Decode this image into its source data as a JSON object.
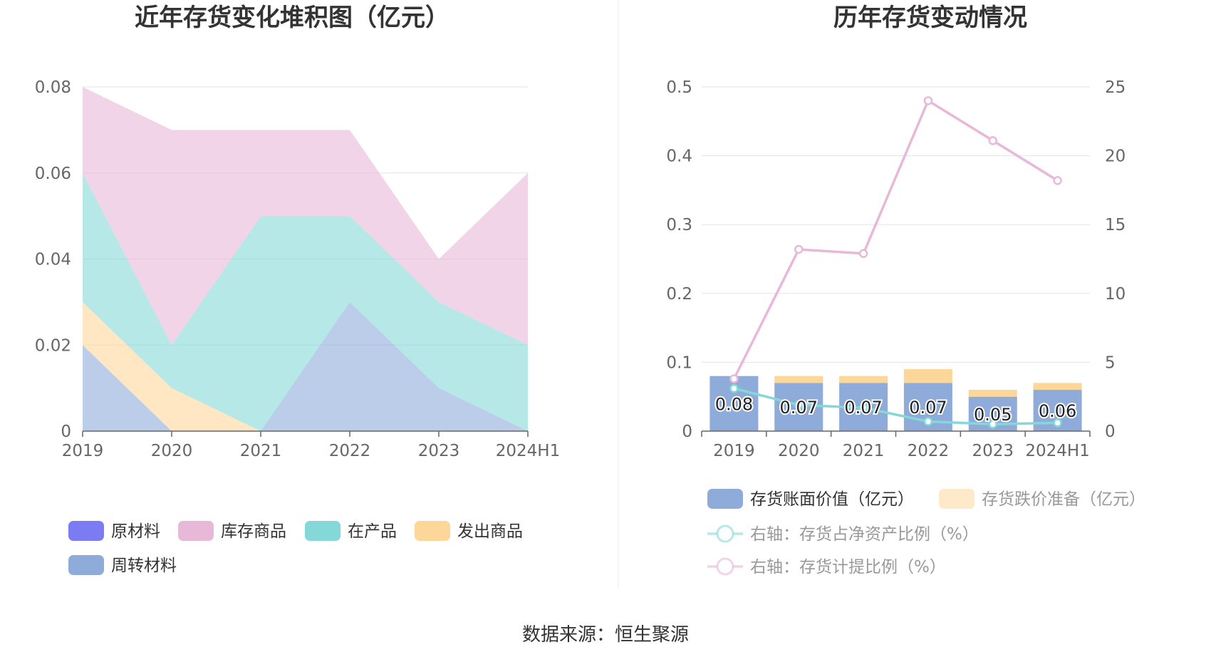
{
  "chart_data": [
    {
      "type": "area",
      "stacked": true,
      "title": "近年存货变化堆积图（亿元）",
      "categories": [
        "2019",
        "2020",
        "2021",
        "2022",
        "2023",
        "2024H1"
      ],
      "ylim": [
        0,
        0.08
      ],
      "yticks": [
        "0",
        "0.02",
        "0.04",
        "0.06",
        "0.08"
      ],
      "grid": true,
      "legend_position": "bottom-left",
      "series": [
        {
          "name": "原材料",
          "color": "#7b7cf3",
          "values": [
            0,
            0,
            0,
            0,
            0,
            0
          ]
        },
        {
          "name": "库存商品",
          "color": "#e8b8d9",
          "values": [
            0.02,
            0.05,
            0.02,
            0.02,
            0.01,
            0.04
          ]
        },
        {
          "name": "在产品",
          "color": "#85d8d8",
          "values": [
            0.03,
            0.01,
            0.05,
            0.02,
            0.02,
            0.02
          ]
        },
        {
          "name": "发出商品",
          "color": "#fdd79a",
          "values": [
            0.01,
            0.01,
            0,
            0,
            0,
            0
          ]
        },
        {
          "name": "周转材料",
          "color": "#8eabda",
          "values": [
            0.02,
            0,
            0,
            0.03,
            0.01,
            0
          ]
        }
      ]
    },
    {
      "type": "bar",
      "title": "历年存货变动情况",
      "categories": [
        "2019",
        "2020",
        "2021",
        "2022",
        "2023",
        "2024H1"
      ],
      "ylim_left": [
        0,
        0.5
      ],
      "yticks_left": [
        "0",
        "0.1",
        "0.2",
        "0.3",
        "0.4",
        "0.5"
      ],
      "ylim_right": [
        0,
        25
      ],
      "yticks_right": [
        "0",
        "5",
        "10",
        "15",
        "20",
        "25"
      ],
      "grid": true,
      "legend_position": "bottom",
      "bars": [
        {
          "name": "存货账面价值（亿元）",
          "color": "#8eabda",
          "values": [
            0.08,
            0.07,
            0.07,
            0.07,
            0.05,
            0.06
          ],
          "labels": [
            "0.08",
            "0.07",
            "0.07",
            "0.07",
            "0.05",
            "0.06"
          ]
        },
        {
          "name": "存货跌价准备（亿元）",
          "color": "#fdd79a",
          "values": [
            0,
            0.01,
            0.01,
            0.02,
            0.01,
            0.01
          ]
        }
      ],
      "lines": [
        {
          "name": "右轴：存货占净资产比例（%）",
          "color": "#85d8d8",
          "axis": "right",
          "values": [
            3.1,
            1.9,
            1.7,
            0.7,
            0.5,
            0.6
          ]
        },
        {
          "name": "右轴：存货计提比例（%）",
          "color": "#e8b8d9",
          "axis": "right",
          "values": [
            3.8,
            13.2,
            12.9,
            24,
            21.1,
            18.2
          ]
        }
      ]
    }
  ],
  "source_text": "数据来源：恒生聚源"
}
